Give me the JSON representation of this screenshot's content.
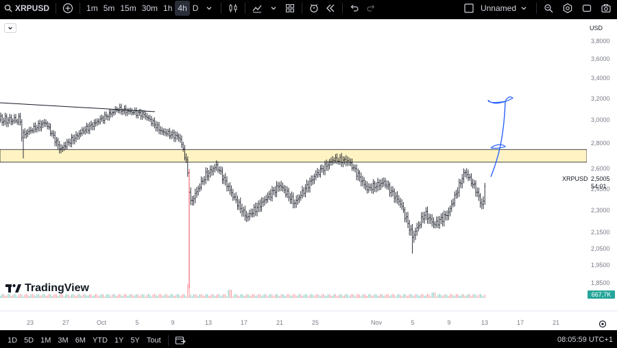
{
  "toolbar": {
    "symbol": "XRPUSD",
    "intervals": [
      "1m",
      "5m",
      "15m",
      "30m",
      "1h",
      "4h",
      "D"
    ],
    "active_interval": "4h",
    "layout_name": "Unnamed",
    "icons": [
      "plus-circle-icon",
      "chevron-down-icon",
      "candles-icon",
      "indicators-icon",
      "templates-icon",
      "alert-icon",
      "replay-icon",
      "undo-icon",
      "redo-icon",
      "checkbox-icon",
      "search-settings-icon",
      "gear-icon",
      "fullscreen-icon",
      "camera-icon"
    ]
  },
  "chart": {
    "currency": "USD",
    "logo_text": "TradingView",
    "price_ticks": [
      "3,8000",
      "3,6000",
      "3,4000",
      "3,2000",
      "3,0000",
      "2,8000",
      "2,6000",
      "2,4500",
      "2,3000",
      "2,1500",
      "2,0500",
      "1,9500",
      "1,8500"
    ],
    "date_ticks": [
      "23",
      "27",
      "Oct",
      "5",
      "9",
      "13",
      "17",
      "21",
      "25",
      "Nov",
      "5",
      "9",
      "13",
      "17",
      "21"
    ],
    "last_price_label": "XRPUSD",
    "last_price": "2,5005",
    "countdown": "54:01",
    "volume_label": "667,7K",
    "colors": {
      "up": "#089981",
      "down": "#f23645",
      "bar": "#131722",
      "zone": "#fff3c4",
      "drawing": "#2962ff",
      "volume_badge": "#26a69a"
    }
  },
  "chart_data": {
    "type": "candlestick",
    "series": [
      {
        "name": "XRPUSD",
        "x": [
          "23",
          "27",
          "Oct",
          "5",
          "9",
          "13",
          "17",
          "21",
          "25",
          "Nov",
          "5",
          "9",
          "13"
        ],
        "values": [
          3.0,
          2.85,
          3.05,
          3.0,
          2.8,
          2.6,
          2.28,
          2.45,
          2.65,
          2.55,
          2.2,
          2.3,
          2.5
        ]
      }
    ],
    "annotations": [
      "XRPUSD",
      "2,5005",
      "54:01",
      "667,7K"
    ]
  },
  "bottom": {
    "ranges": [
      "1D",
      "5D",
      "1M",
      "3M",
      "6M",
      "YTD",
      "1Y",
      "5Y",
      "Tout"
    ],
    "clock": "08:05:59 UTC+1",
    "icons": [
      "calendar-range-icon",
      "settings-gear-icon"
    ]
  }
}
